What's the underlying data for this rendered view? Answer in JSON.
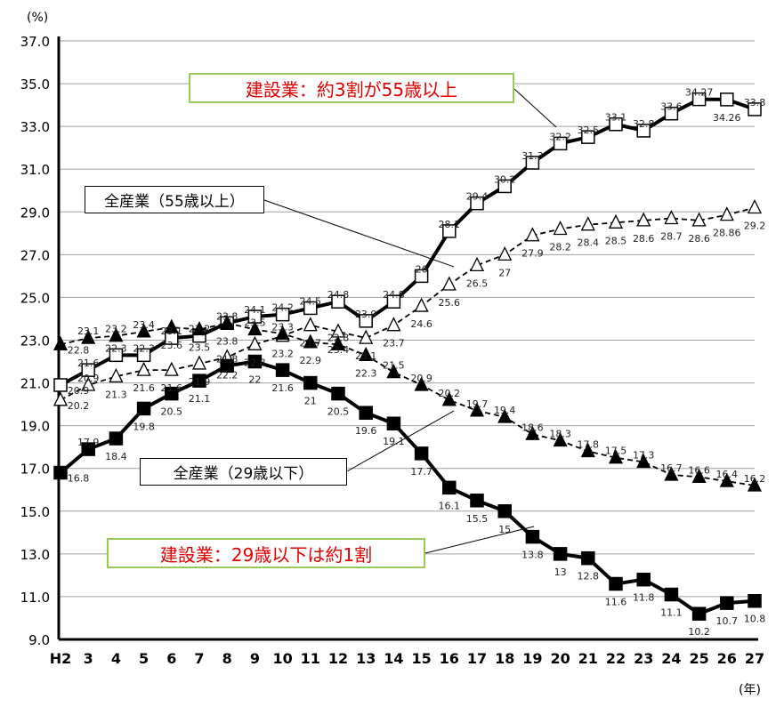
{
  "chart_data": {
    "type": "line",
    "y_unit_label": "(%)",
    "x_unit_label": "(年)",
    "ylim": [
      9.0,
      37.0
    ],
    "yticks": [
      "9.0",
      "11.0",
      "13.0",
      "15.0",
      "17.0",
      "19.0",
      "21.0",
      "23.0",
      "25.0",
      "27.0",
      "29.0",
      "31.0",
      "33.0",
      "35.0",
      "37.0"
    ],
    "categories": [
      "H2",
      "3",
      "4",
      "5",
      "6",
      "7",
      "8",
      "9",
      "10",
      "11",
      "12",
      "13",
      "14",
      "15",
      "16",
      "17",
      "18",
      "19",
      "20",
      "21",
      "22",
      "23",
      "24",
      "25",
      "26",
      "27"
    ],
    "grid": "horizontal",
    "series": [
      {
        "key": "const55",
        "marker": "open-square",
        "line": "solid-thick",
        "values": [
          20.9,
          21.6,
          22.3,
          22.3,
          23.1,
          23.2,
          23.8,
          24.1,
          24.2,
          24.5,
          24.8,
          23.9,
          24.8,
          26.0,
          28.1,
          29.4,
          30.2,
          31.3,
          32.2,
          32.5,
          33.1,
          32.8,
          33.6,
          34.27,
          34.26,
          33.8
        ]
      },
      {
        "key": "all55",
        "marker": "open-triangle",
        "line": "dashed",
        "values": [
          20.2,
          20.9,
          21.3,
          21.6,
          21.6,
          21.9,
          22.2,
          22.8,
          23.2,
          23.7,
          23.4,
          23.1,
          23.7,
          24.6,
          25.6,
          26.5,
          27.0,
          27.9,
          28.2,
          28.4,
          28.5,
          28.6,
          28.7,
          28.6,
          28.86,
          29.2
        ]
      },
      {
        "key": "all29",
        "marker": "filled-triangle",
        "line": "dashed",
        "values": [
          22.8,
          23.1,
          23.2,
          23.4,
          23.6,
          23.5,
          23.8,
          23.5,
          23.3,
          22.9,
          22.8,
          22.3,
          21.5,
          20.9,
          20.2,
          19.7,
          19.4,
          18.6,
          18.3,
          17.8,
          17.5,
          17.3,
          16.7,
          16.6,
          16.4,
          16.2
        ]
      },
      {
        "key": "const29",
        "marker": "filled-square",
        "line": "solid-thick",
        "values": [
          16.8,
          17.9,
          18.4,
          19.8,
          20.5,
          21.1,
          21.8,
          22,
          21.6,
          21.0,
          20.5,
          19.6,
          19.1,
          17.7,
          16.1,
          15.5,
          15.0,
          13.8,
          13.0,
          12.8,
          11.6,
          11.8,
          11.1,
          10.2,
          10.7,
          10.8
        ]
      }
    ],
    "annotations": {
      "const55": "建設業：約3割が55歳以上",
      "all55": "全産業（55歳以上）",
      "all29": "全産業（29歳以下）",
      "const29": "建設業：29歳以下は約1割"
    },
    "colors": {
      "annotation_text": "#e00000",
      "annotation_border": "#9bc85a",
      "grid": "#a0a0a0"
    }
  }
}
